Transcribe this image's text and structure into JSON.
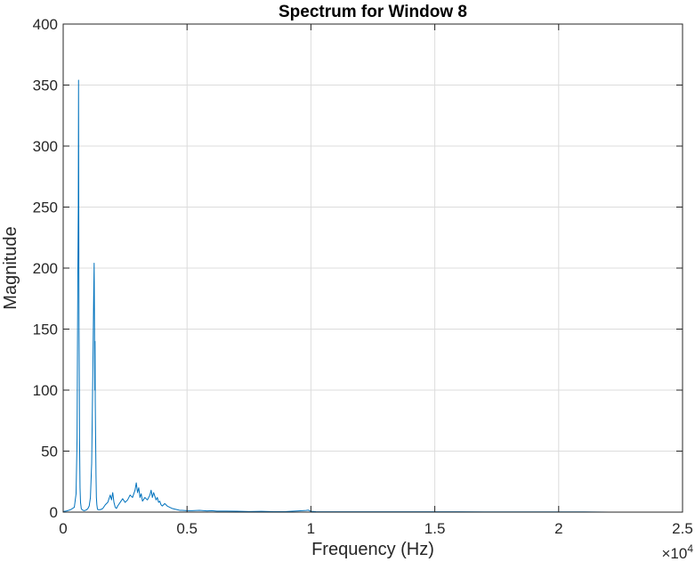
{
  "chart_data": {
    "type": "line",
    "title": "Spectrum for Window 8",
    "xlabel": "Frequency (Hz)",
    "ylabel": "Magnitude",
    "xlim": [
      0,
      25000
    ],
    "ylim": [
      0,
      400
    ],
    "x_ticks": [
      0,
      5000,
      10000,
      15000,
      20000,
      25000
    ],
    "x_tick_labels": [
      "0",
      "0.5",
      "1",
      "1.5",
      "2",
      "2.5"
    ],
    "x_exponent_label": "×10",
    "x_exponent_power": "4",
    "y_ticks": [
      0,
      50,
      100,
      150,
      200,
      250,
      300,
      350,
      400
    ],
    "y_tick_labels": [
      "0",
      "50",
      "100",
      "150",
      "200",
      "250",
      "300",
      "350",
      "400"
    ],
    "grid": true,
    "line_color": "#0072bd",
    "series": [
      {
        "x": [
          0,
          150,
          300,
          450,
          520,
          560,
          590,
          610,
          620,
          630,
          640,
          650,
          660,
          680,
          700,
          730,
          760,
          800,
          850,
          900,
          950,
          1000,
          1050,
          1100,
          1150,
          1200,
          1230,
          1250,
          1265,
          1275,
          1285,
          1295,
          1310,
          1325,
          1340,
          1360,
          1380,
          1400,
          1450,
          1500,
          1600,
          1700,
          1800,
          1900,
          1950,
          2000,
          2050,
          2100,
          2150,
          2200,
          2300,
          2400,
          2500,
          2600,
          2700,
          2800,
          2900,
          2950,
          3000,
          3050,
          3100,
          3150,
          3200,
          3300,
          3400,
          3500,
          3550,
          3600,
          3650,
          3700,
          3750,
          3800,
          3850,
          3900,
          3950,
          4000,
          4100,
          4200,
          4300,
          4400,
          4500,
          4600,
          4700,
          4800,
          5000,
          5200,
          5500,
          5800,
          6000,
          6200,
          6500,
          7000,
          7500,
          8000,
          8500,
          9000,
          9500,
          9800,
          9900,
          10000,
          10200,
          10500,
          11000,
          12000,
          13000,
          14000,
          15000,
          16000,
          17000,
          18000,
          19000,
          20000,
          21000,
          22050
        ],
        "y": [
          0.5,
          1,
          2,
          4,
          15,
          60,
          190,
          250,
          354,
          240,
          150,
          110,
          60,
          20,
          8,
          3,
          2,
          1.5,
          1.2,
          1.5,
          2,
          3,
          5,
          12,
          40,
          120,
          175,
          204,
          150,
          100,
          140,
          90,
          60,
          30,
          12,
          6,
          3,
          2,
          2,
          2,
          3,
          6,
          8,
          14,
          10,
          16,
          8,
          4,
          3,
          5,
          8,
          11,
          8,
          10,
          14,
          12,
          18,
          24,
          16,
          20,
          12,
          15,
          9,
          12,
          10,
          14,
          18,
          12,
          16,
          13,
          10,
          12,
          8,
          9,
          6,
          5,
          7,
          5,
          4,
          3,
          2.5,
          2,
          1.5,
          1.5,
          1.2,
          1.2,
          1.5,
          1,
          1.2,
          0.8,
          0.8,
          0.7,
          0.5,
          0.6,
          0.4,
          0.5,
          1,
          1.4,
          1.6,
          0.6,
          0.4,
          0.3,
          0.3,
          0.3,
          0.3,
          0.3,
          0.3,
          0.3,
          0.2,
          0.2,
          0.2,
          0.2,
          0.2,
          0
        ]
      }
    ]
  }
}
